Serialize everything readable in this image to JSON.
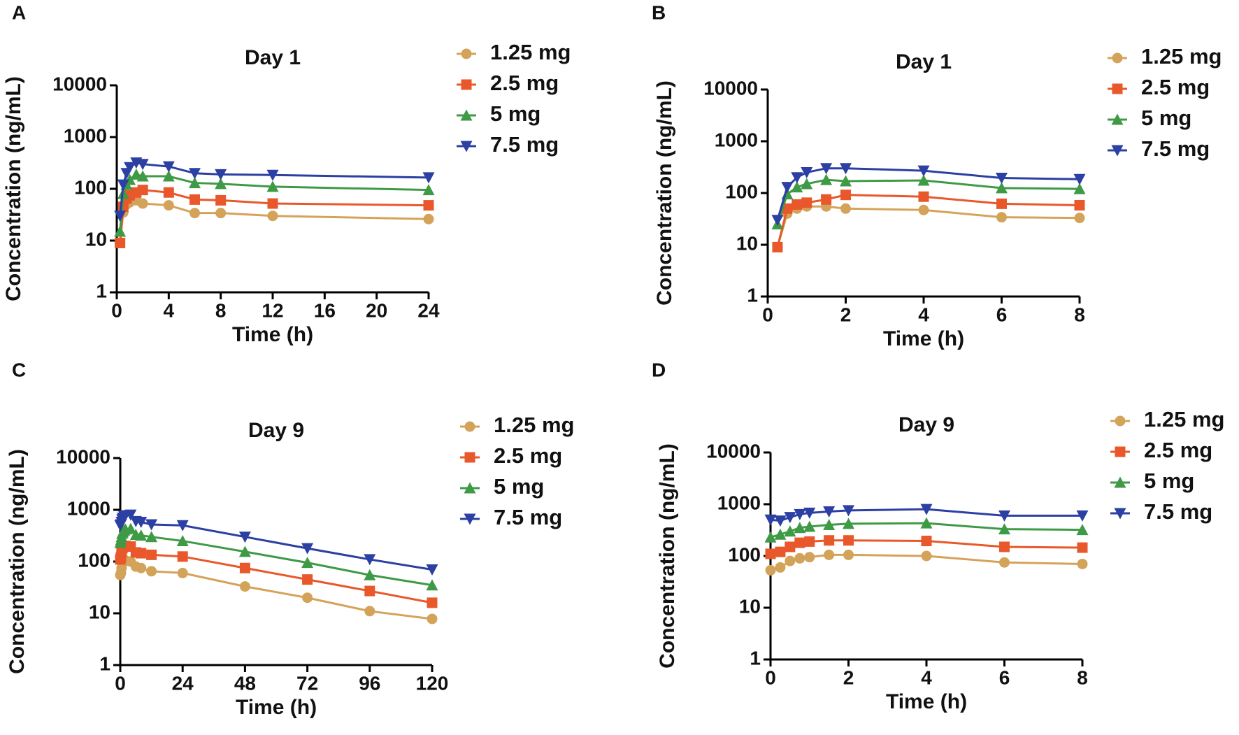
{
  "chart_data": [
    {
      "type": "line",
      "label": "A",
      "title": "Day 1",
      "x_label": "Time (h)",
      "y_label": "Concentration (ng/mL)",
      "log_y": true,
      "x": [
        0.25,
        0.5,
        0.75,
        1,
        1.5,
        2,
        4,
        6,
        8,
        12,
        24
      ],
      "xlim": [
        0,
        24
      ],
      "xticks": [
        0,
        4,
        8,
        12,
        16,
        20,
        24
      ],
      "ylim": [
        1,
        10000
      ],
      "yticks": [
        1,
        10,
        100,
        1000,
        10000
      ],
      "series": [
        {
          "name": "1.25 mg",
          "color": "#d4a35a",
          "marker": "circle",
          "values": [
            9,
            35,
            50,
            55,
            60,
            52,
            48,
            34,
            34,
            30,
            26
          ]
        },
        {
          "name": "2.5 mg",
          "color": "#e8582a",
          "marker": "square",
          "values": [
            9,
            45,
            65,
            75,
            85,
            95,
            85,
            62,
            60,
            52,
            48
          ]
        },
        {
          "name": "5 mg",
          "color": "#3f9a46",
          "marker": "triangle-up",
          "values": [
            15,
            80,
            120,
            150,
            190,
            175,
            175,
            130,
            125,
            110,
            95
          ]
        },
        {
          "name": "7.5 mg",
          "color": "#2c3fa3",
          "marker": "triangle-down",
          "values": [
            30,
            120,
            200,
            260,
            320,
            300,
            270,
            200,
            190,
            185,
            165
          ]
        }
      ]
    },
    {
      "type": "line",
      "label": "B",
      "title": "Day 1",
      "x_label": "Time (h)",
      "y_label": "Concentration (ng/mL)",
      "log_y": true,
      "x": [
        0.25,
        0.5,
        0.75,
        1,
        1.5,
        2,
        4,
        6,
        8
      ],
      "xlim": [
        0,
        8
      ],
      "xticks": [
        0,
        2,
        4,
        6,
        8
      ],
      "ylim": [
        1,
        10000
      ],
      "yticks": [
        1,
        10,
        100,
        1000,
        10000
      ],
      "series": [
        {
          "name": "1.25 mg",
          "color": "#d4a35a",
          "marker": "circle",
          "values": [
            9,
            40,
            50,
            55,
            55,
            50,
            47,
            34,
            33
          ]
        },
        {
          "name": "2.5 mg",
          "color": "#e8582a",
          "marker": "square",
          "values": [
            9,
            50,
            60,
            65,
            75,
            92,
            85,
            62,
            58
          ]
        },
        {
          "name": "5 mg",
          "color": "#3f9a46",
          "marker": "triangle-up",
          "values": [
            25,
            95,
            130,
            150,
            180,
            170,
            175,
            125,
            120
          ]
        },
        {
          "name": "7.5 mg",
          "color": "#2c3fa3",
          "marker": "triangle-down",
          "values": [
            30,
            130,
            200,
            250,
            300,
            300,
            270,
            195,
            185
          ]
        }
      ]
    },
    {
      "type": "line",
      "label": "C",
      "title": "Day 9",
      "x_label": "Time (h)",
      "y_label": "Concentration (ng/mL)",
      "log_y": true,
      "x": [
        0,
        0.25,
        0.5,
        0.75,
        1,
        1.5,
        2,
        4,
        6,
        8,
        12,
        24,
        48,
        72,
        96,
        120
      ],
      "xlim": [
        0,
        120
      ],
      "xticks": [
        0,
        24,
        48,
        72,
        96,
        120
      ],
      "ylim": [
        1,
        10000
      ],
      "yticks": [
        1,
        10,
        100,
        1000,
        10000
      ],
      "series": [
        {
          "name": "1.25 mg",
          "color": "#d4a35a",
          "marker": "circle",
          "values": [
            55,
            60,
            75,
            90,
            95,
            100,
            105,
            100,
            80,
            75,
            65,
            60,
            33,
            20,
            11,
            7.8
          ]
        },
        {
          "name": "2.5 mg",
          "color": "#e8582a",
          "marker": "square",
          "values": [
            110,
            120,
            150,
            180,
            190,
            200,
            200,
            195,
            150,
            145,
            135,
            125,
            75,
            45,
            27,
            16
          ]
        },
        {
          "name": "5 mg",
          "color": "#3f9a46",
          "marker": "triangle-up",
          "values": [
            230,
            260,
            300,
            350,
            370,
            400,
            420,
            430,
            330,
            320,
            300,
            250,
            155,
            95,
            55,
            35
          ]
        },
        {
          "name": "7.5 mg",
          "color": "#2c3fa3",
          "marker": "triangle-down",
          "values": [
            500,
            520,
            580,
            650,
            700,
            750,
            780,
            800,
            600,
            580,
            520,
            500,
            300,
            180,
            110,
            70
          ]
        }
      ]
    },
    {
      "type": "line",
      "label": "D",
      "title": "Day 9",
      "x_label": "Time (h)",
      "y_label": "Concentration (ng/mL)",
      "log_y": true,
      "x": [
        0,
        0.25,
        0.5,
        0.75,
        1,
        1.5,
        2,
        4,
        6,
        8
      ],
      "xlim": [
        0,
        8
      ],
      "xticks": [
        0,
        2,
        4,
        6,
        8
      ],
      "ylim": [
        1,
        10000
      ],
      "yticks": [
        1,
        10,
        100,
        1000,
        10000
      ],
      "series": [
        {
          "name": "1.25 mg",
          "color": "#d4a35a",
          "marker": "circle",
          "values": [
            53,
            60,
            80,
            90,
            95,
            105,
            105,
            100,
            75,
            70
          ]
        },
        {
          "name": "2.5 mg",
          "color": "#e8582a",
          "marker": "square",
          "values": [
            110,
            120,
            150,
            180,
            190,
            200,
            200,
            195,
            150,
            145
          ]
        },
        {
          "name": "5 mg",
          "color": "#3f9a46",
          "marker": "triangle-up",
          "values": [
            230,
            260,
            300,
            350,
            370,
            400,
            420,
            430,
            330,
            320
          ]
        },
        {
          "name": "7.5 mg",
          "color": "#2c3fa3",
          "marker": "triangle-down",
          "values": [
            500,
            480,
            560,
            640,
            680,
            720,
            760,
            800,
            600,
            600
          ]
        }
      ]
    }
  ]
}
